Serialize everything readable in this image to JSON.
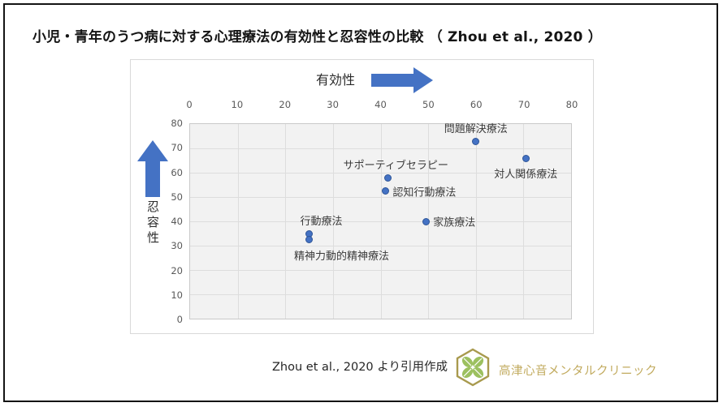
{
  "title": "小児・青年のうつ病に対する心理療法の有効性と忍容性の比較 （ Zhou et al., 2020 ）",
  "footer": {
    "source_text": "Zhou et al., 2020 より引用作成",
    "clinic_name": "高津心音メンタルクリニック"
  },
  "colors": {
    "accent_blue": "#4472c4",
    "dot_border": "#2e5597",
    "plot_bg": "#f2f2f2",
    "gridline": "#dddddd",
    "logo_gold": "#a89a4e",
    "clinic_text_gold": "#c2ab5f",
    "leaf_green": "#9cc05f"
  },
  "chart_data": {
    "type": "scatter",
    "title": "",
    "xlabel": "有効性",
    "ylabel": "忍容性",
    "xlim": [
      0,
      80
    ],
    "ylim": [
      0,
      80
    ],
    "x_ticks": [
      0,
      10,
      20,
      30,
      40,
      50,
      60,
      70,
      80
    ],
    "y_ticks": [
      0,
      10,
      20,
      30,
      40,
      50,
      60,
      70,
      80
    ],
    "grid": true,
    "x_axis_position": "top",
    "legend": "none",
    "points": [
      {
        "label": "問題解決療法",
        "x": 60,
        "y": 73,
        "label_pos": "above"
      },
      {
        "label": "対人関係療法",
        "x": 70.5,
        "y": 66,
        "label_pos": "below"
      },
      {
        "label": "サポーティブセラピー",
        "x": 41.5,
        "y": 58,
        "label_pos": "above",
        "label_dx": 10
      },
      {
        "label": "認知行動療法",
        "x": 41,
        "y": 52.5,
        "label_pos": "right"
      },
      {
        "label": "家族療法",
        "x": 49.5,
        "y": 40,
        "label_pos": "right"
      },
      {
        "label": "行動療法",
        "x": 25,
        "y": 35,
        "label_pos": "above",
        "label_dx": 15
      },
      {
        "label": "精神力動的精神療法",
        "x": 25,
        "y": 32.5,
        "label_pos": "below",
        "label_dx": 40
      }
    ]
  }
}
